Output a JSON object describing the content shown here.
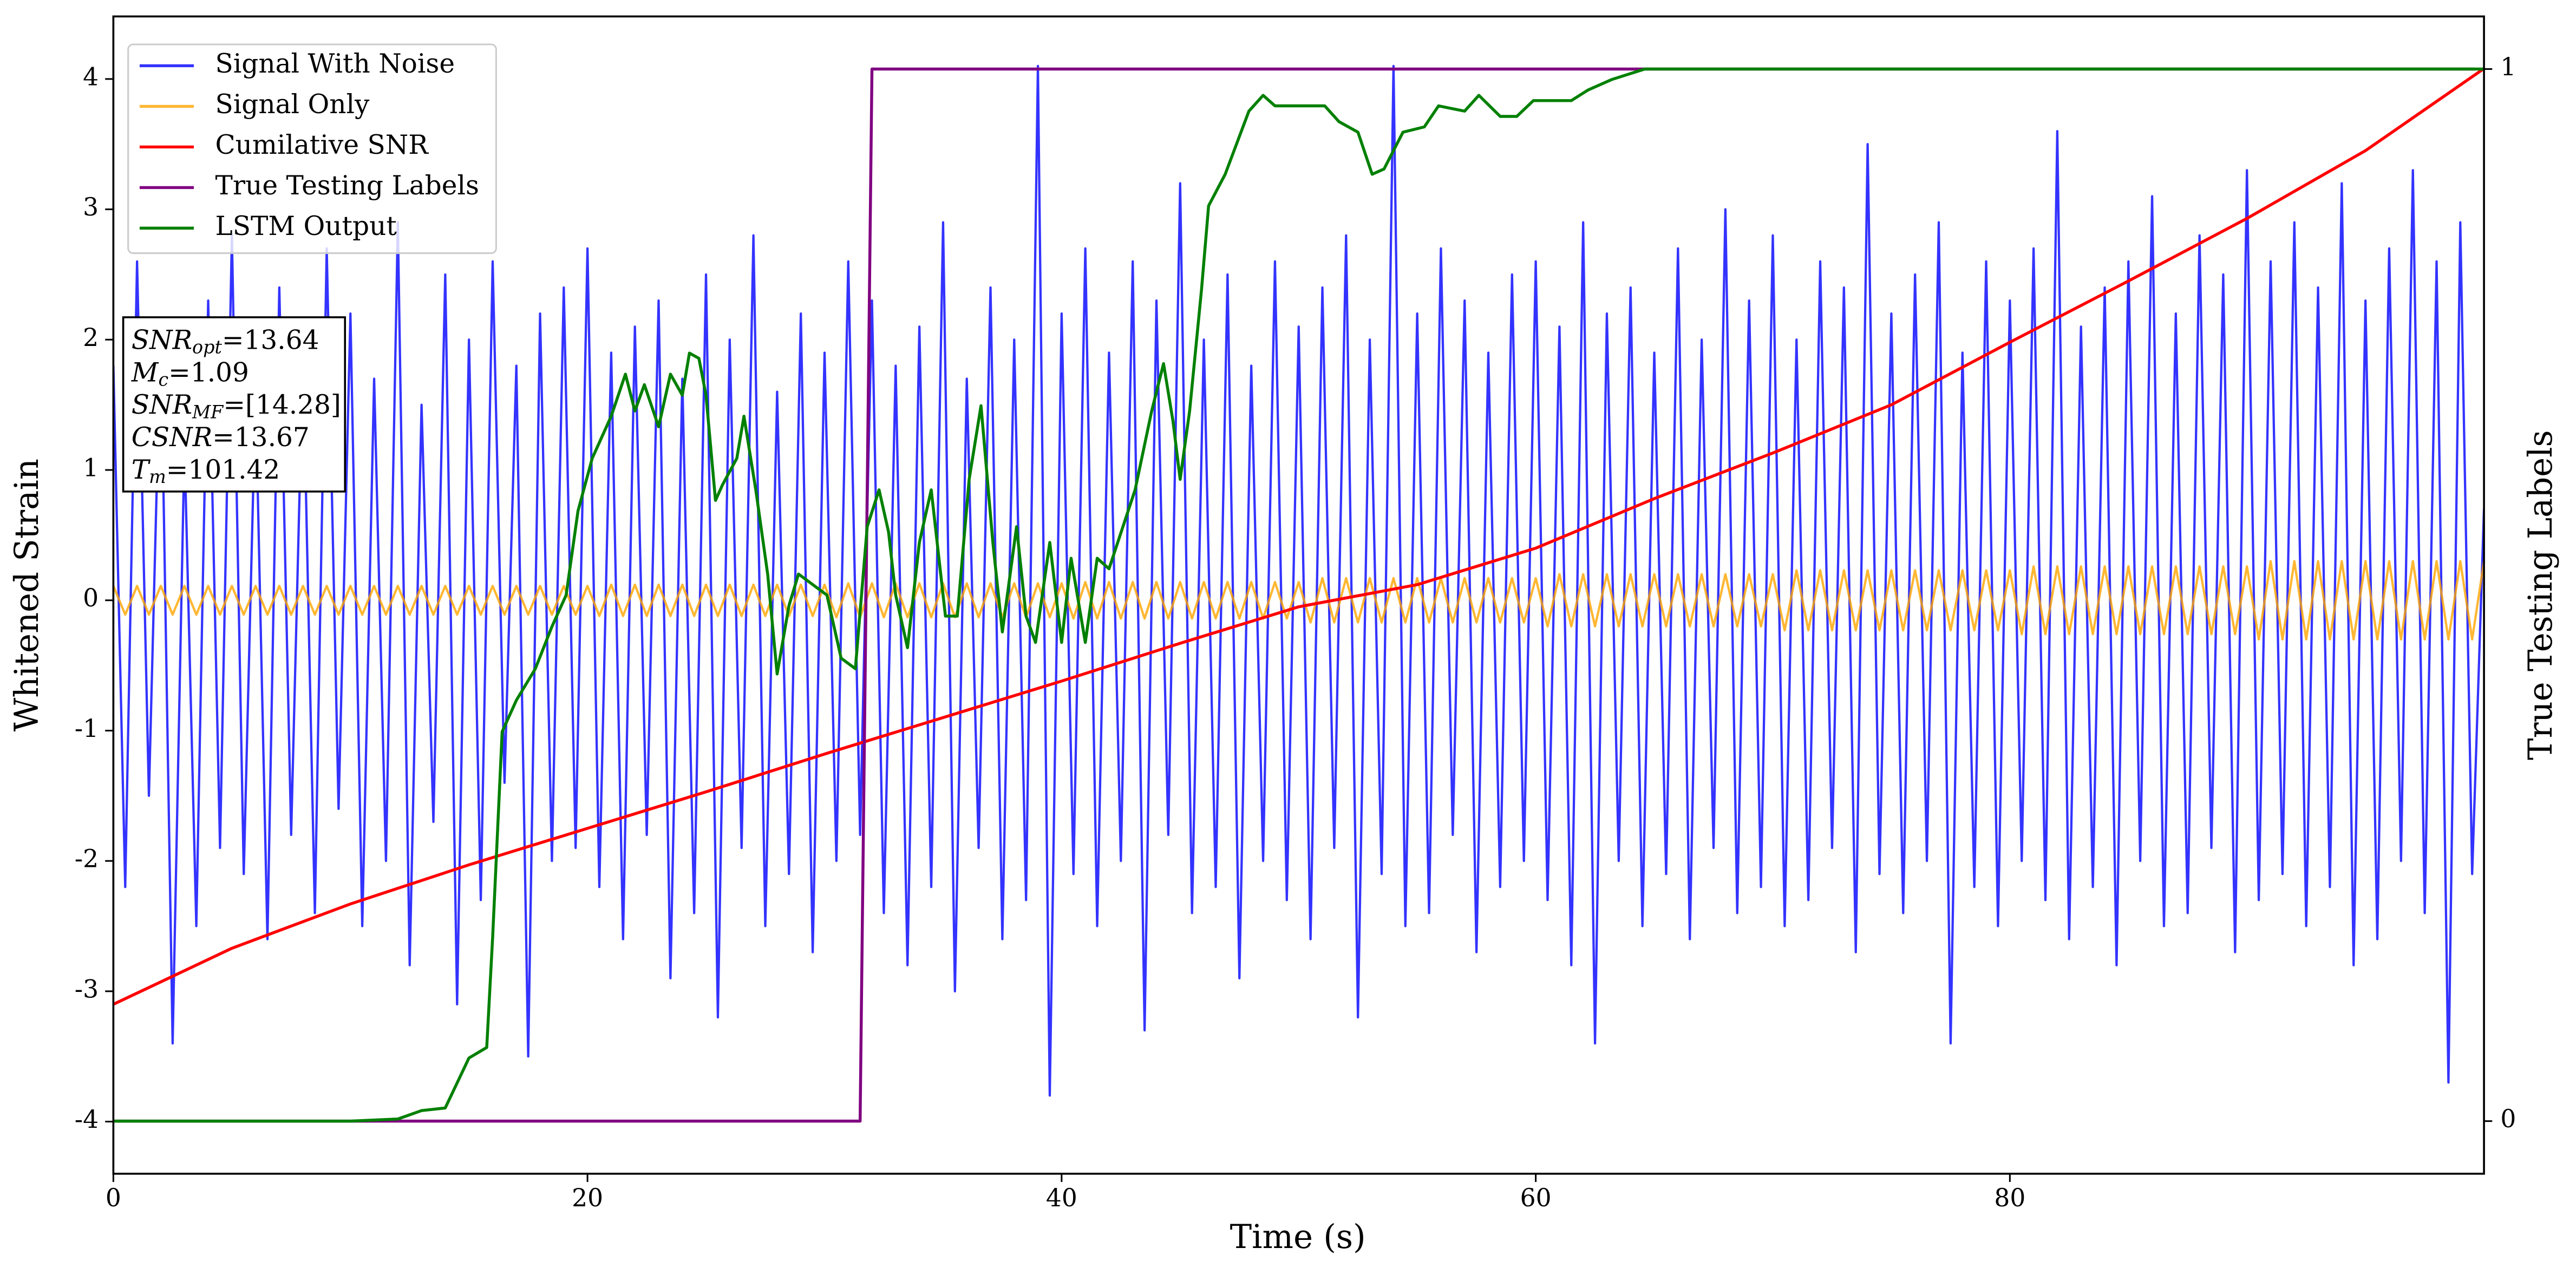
{
  "chart_data": {
    "type": "line",
    "xlabel": "Time (s)",
    "ylabel": "Whitened Strain",
    "y2label": "True Testing Labels",
    "xlim": [
      0,
      100
    ],
    "ylim": [
      -4.4,
      4.48
    ],
    "y2lim": [
      -0.05,
      1.05
    ],
    "xticks": [
      0,
      20,
      40,
      60,
      80
    ],
    "yticks": [
      -4,
      -3,
      -2,
      -1,
      0,
      1,
      2,
      3,
      4
    ],
    "y2ticks": [
      0,
      1
    ],
    "legend": "upper left",
    "annotation": [
      {
        "main": "SNR",
        "sub": "opt",
        "rest": "=13.64"
      },
      {
        "main": "M",
        "sub": "c",
        "rest": "=1.09"
      },
      {
        "main": "SNR",
        "sub": "MF",
        "rest": "=[14.28]"
      },
      {
        "main": "CSNR",
        "sub": null,
        "rest": "=13.67"
      },
      {
        "main": "T",
        "sub": "m",
        "rest": "=101.42"
      }
    ],
    "series": [
      {
        "name": "Signal With Noise",
        "color": "blue",
        "alpha": 0.8,
        "axis": "y",
        "x": [
          0,
          0.5,
          1,
          1.5,
          2,
          2.5,
          3,
          3.5,
          4,
          4.5,
          5,
          5.5,
          6,
          6.5,
          7,
          7.5,
          8,
          8.5,
          9,
          9.5,
          10,
          10.5,
          11,
          11.5,
          12,
          12.5,
          13,
          13.5,
          14,
          14.5,
          15,
          15.5,
          16,
          16.5,
          17,
          17.5,
          18,
          18.5,
          19,
          19.5,
          20,
          20.5,
          21,
          21.5,
          22,
          22.5,
          23,
          23.5,
          24,
          24.5,
          25,
          25.5,
          26,
          26.5,
          27,
          27.5,
          28,
          28.5,
          29,
          29.5,
          30,
          30.5,
          31,
          31.5,
          32,
          32.5,
          33,
          33.5,
          34,
          34.5,
          35,
          35.5,
          36,
          36.5,
          37,
          37.5,
          38,
          38.5,
          39,
          39.5,
          40,
          40.5,
          41,
          41.5,
          42,
          42.5,
          43,
          43.5,
          44,
          44.5,
          45,
          45.5,
          46,
          46.5,
          47,
          47.5,
          48,
          48.5,
          49,
          49.5,
          50,
          50.5,
          51,
          51.5,
          52,
          52.5,
          53,
          53.5,
          54,
          54.5,
          55,
          55.5,
          56,
          56.5,
          57,
          57.5,
          58,
          58.5,
          59,
          59.5,
          60,
          60.5,
          61,
          61.5,
          62,
          62.5,
          63,
          63.5,
          64,
          64.5,
          65,
          65.5,
          66,
          66.5,
          67,
          67.5,
          68,
          68.5,
          69,
          69.5,
          70,
          70.5,
          71,
          71.5,
          72,
          72.5,
          73,
          73.5,
          74,
          74.5,
          75,
          75.5,
          76,
          76.5,
          77,
          77.5,
          78,
          78.5,
          79,
          79.5,
          80,
          80.5,
          81,
          81.5,
          82,
          82.5,
          83,
          83.5,
          84,
          84.5,
          85,
          85.5,
          86,
          86.5,
          87,
          87.5,
          88,
          88.5,
          89,
          89.5,
          90,
          90.5,
          91,
          91.5,
          92,
          92.5,
          93,
          93.5,
          94,
          94.5,
          95,
          95.5,
          96,
          96.5,
          97,
          97.5,
          98,
          98.5,
          99,
          99.5,
          100
        ],
        "values": [
          1.8,
          -2.2,
          2.6,
          -1.5,
          2.1,
          -3.4,
          1.2,
          -2.5,
          2.3,
          -1.9,
          2.8,
          -2.1,
          1.6,
          -2.6,
          2.4,
          -1.8,
          1.9,
          -2.4,
          2.7,
          -1.6,
          2.2,
          -2.5,
          1.7,
          -2.0,
          2.9,
          -2.8,
          1.5,
          -1.7,
          2.5,
          -3.1,
          2.0,
          -2.3,
          2.6,
          -1.4,
          1.8,
          -3.5,
          2.2,
          -2.0,
          2.4,
          -1.9,
          2.7,
          -2.2,
          1.9,
          -2.6,
          2.1,
          -1.8,
          2.3,
          -2.9,
          1.7,
          -2.4,
          2.5,
          -3.2,
          2.0,
          -1.9,
          2.8,
          -2.5,
          1.6,
          -2.1,
          2.2,
          -2.7,
          1.9,
          -2.0,
          2.6,
          -1.8,
          2.3,
          -2.4,
          1.8,
          -2.8,
          2.1,
          -2.2,
          2.9,
          -3.0,
          1.7,
          -1.9,
          2.4,
          -2.6,
          2.0,
          -2.3,
          4.1,
          -3.8,
          2.2,
          -2.1,
          2.7,
          -2.5,
          1.9,
          -2.0,
          2.6,
          -3.3,
          2.3,
          -1.8,
          3.2,
          -2.4,
          2.0,
          -2.2,
          2.5,
          -2.9,
          1.8,
          -2.0,
          2.6,
          -2.3,
          2.1,
          -2.6,
          2.4,
          -1.9,
          2.8,
          -3.2,
          2.0,
          -2.1,
          4.1,
          -2.5,
          2.2,
          -2.4,
          2.7,
          -1.8,
          2.3,
          -2.7,
          1.9,
          -2.2,
          2.5,
          -2.0,
          2.6,
          -2.3,
          2.1,
          -2.8,
          2.9,
          -3.4,
          2.2,
          -2.0,
          2.4,
          -2.5,
          1.9,
          -2.1,
          2.7,
          -2.6,
          2.0,
          -1.9,
          3.0,
          -2.4,
          2.3,
          -2.2,
          2.8,
          -2.5,
          2.0,
          -2.3,
          2.6,
          -1.9,
          2.4,
          -2.7,
          3.5,
          -2.1,
          2.2,
          -2.4,
          2.5,
          -2.0,
          2.9,
          -3.4,
          1.9,
          -2.2,
          2.6,
          -2.5,
          2.3,
          -2.0,
          2.7,
          -2.3,
          3.6,
          -2.6,
          2.1,
          -2.2,
          2.4,
          -2.8,
          2.6,
          -2.0,
          3.1,
          -2.5,
          2.2,
          -2.4,
          2.8,
          -1.9,
          2.5,
          -2.7,
          3.3,
          -2.3,
          2.6,
          -2.1,
          2.9,
          -2.5,
          2.4,
          -2.2,
          3.2,
          -2.8,
          2.3,
          -2.6,
          2.7,
          -2.0,
          3.3,
          -2.4,
          2.6,
          -3.7,
          2.9,
          -2.1,
          0.7
        ]
      },
      {
        "name": "Signal Only",
        "color": "orange",
        "alpha": 0.8,
        "axis": "y",
        "x": [
          0,
          0.5,
          1,
          1.5,
          2,
          2.5,
          3,
          3.5,
          4,
          4.5,
          5,
          5.5,
          6,
          6.5,
          7,
          7.5,
          8,
          8.5,
          9,
          9.5,
          10,
          10.5,
          11,
          11.5,
          12,
          12.5,
          13,
          13.5,
          14,
          14.5,
          15,
          15.5,
          16,
          16.5,
          17,
          17.5,
          18,
          18.5,
          19,
          19.5,
          20,
          20.5,
          21,
          21.5,
          22,
          22.5,
          23,
          23.5,
          24,
          24.5,
          25,
          25.5,
          26,
          26.5,
          27,
          27.5,
          28,
          28.5,
          29,
          29.5,
          30,
          30.5,
          31,
          31.5,
          32,
          32.5,
          33,
          33.5,
          34,
          34.5,
          35,
          35.5,
          36,
          36.5,
          37,
          37.5,
          38,
          38.5,
          39,
          39.5,
          40,
          40.5,
          41,
          41.5,
          42,
          42.5,
          43,
          43.5,
          44,
          44.5,
          45,
          45.5,
          46,
          46.5,
          47,
          47.5,
          48,
          48.5,
          49,
          49.5,
          50,
          50.5,
          51,
          51.5,
          52,
          52.5,
          53,
          53.5,
          54,
          54.5,
          55,
          55.5,
          56,
          56.5,
          57,
          57.5,
          58,
          58.5,
          59,
          59.5,
          60,
          60.5,
          61,
          61.5,
          62,
          62.5,
          63,
          63.5,
          64,
          64.5,
          65,
          65.5,
          66,
          66.5,
          67,
          67.5,
          68,
          68.5,
          69,
          69.5,
          70,
          70.5,
          71,
          71.5,
          72,
          72.5,
          73,
          73.5,
          74,
          74.5,
          75,
          75.5,
          76,
          76.5,
          77,
          77.5,
          78,
          78.5,
          79,
          79.5,
          80,
          80.5,
          81,
          81.5,
          82,
          82.5,
          83,
          83.5,
          84,
          84.5,
          85,
          85.5,
          86,
          86.5,
          87,
          87.5,
          88,
          88.5,
          89,
          89.5,
          90,
          90.5,
          91,
          91.5,
          92,
          92.5,
          93,
          93.5,
          94,
          94.5,
          95,
          95.5,
          96,
          96.5,
          97,
          97.5,
          98,
          98.5,
          99,
          99.5,
          100
        ],
        "values": [
          0.11,
          -0.11,
          0.11,
          -0.11,
          0.11,
          -0.11,
          0.11,
          -0.11,
          0.11,
          -0.11,
          0.11,
          -0.11,
          0.11,
          -0.11,
          0.11,
          -0.11,
          0.11,
          -0.11,
          0.11,
          -0.11,
          0.11,
          -0.11,
          0.11,
          -0.11,
          0.11,
          -0.11,
          0.11,
          -0.11,
          0.11,
          -0.11,
          0.11,
          -0.11,
          0.11,
          -0.11,
          0.11,
          -0.11,
          0.11,
          -0.11,
          0.11,
          -0.11,
          0.11,
          -0.12,
          0.12,
          -0.12,
          0.12,
          -0.12,
          0.12,
          -0.12,
          0.12,
          -0.12,
          0.12,
          -0.12,
          0.12,
          -0.12,
          0.12,
          -0.12,
          0.12,
          -0.12,
          0.12,
          -0.12,
          0.12,
          -0.13,
          0.13,
          -0.13,
          0.13,
          -0.13,
          0.13,
          -0.13,
          0.13,
          -0.13,
          0.13,
          -0.13,
          0.13,
          -0.13,
          0.13,
          -0.13,
          0.13,
          -0.13,
          0.13,
          -0.13,
          0.13,
          -0.14,
          0.14,
          -0.14,
          0.14,
          -0.14,
          0.14,
          -0.14,
          0.14,
          -0.14,
          0.14,
          -0.14,
          0.14,
          -0.14,
          0.14,
          -0.14,
          0.14,
          -0.14,
          0.14,
          -0.14,
          0.14,
          -0.17,
          0.17,
          -0.17,
          0.17,
          -0.17,
          0.17,
          -0.17,
          0.17,
          -0.17,
          0.17,
          -0.17,
          0.17,
          -0.17,
          0.17,
          -0.17,
          0.17,
          -0.17,
          0.17,
          -0.17,
          0.17,
          -0.2,
          0.2,
          -0.2,
          0.2,
          -0.2,
          0.2,
          -0.2,
          0.2,
          -0.2,
          0.2,
          -0.2,
          0.2,
          -0.2,
          0.2,
          -0.2,
          0.2,
          -0.2,
          0.2,
          -0.2,
          0.2,
          -0.23,
          0.23,
          -0.23,
          0.23,
          -0.23,
          0.23,
          -0.23,
          0.23,
          -0.23,
          0.23,
          -0.23,
          0.23,
          -0.23,
          0.23,
          -0.23,
          0.23,
          -0.23,
          0.23,
          -0.23,
          0.23,
          -0.26,
          0.26,
          -0.26,
          0.26,
          -0.26,
          0.26,
          -0.26,
          0.26,
          -0.26,
          0.26,
          -0.26,
          0.26,
          -0.26,
          0.26,
          -0.26,
          0.26,
          -0.26,
          0.26,
          -0.26,
          0.26,
          -0.3,
          0.3,
          -0.3,
          0.3,
          -0.3,
          0.3,
          -0.3,
          0.3,
          -0.3,
          0.3,
          -0.3,
          0.3,
          -0.3,
          0.3,
          -0.3,
          0.3,
          -0.3,
          0.3,
          -0.3,
          0.3
        ]
      },
      {
        "name": "Cumilative SNR",
        "color": "red",
        "axis": "y",
        "x": [
          0,
          5,
          10,
          15,
          20,
          25,
          30,
          35,
          40,
          45,
          50,
          55,
          60,
          65,
          70,
          75,
          80,
          85,
          90,
          95,
          100
        ],
        "values": [
          -3.1,
          -2.67,
          -2.33,
          -2.03,
          -1.75,
          -1.47,
          -1.18,
          -0.9,
          -0.62,
          -0.33,
          -0.05,
          0.12,
          0.4,
          0.78,
          1.13,
          1.5,
          1.98,
          2.45,
          2.93,
          3.45,
          4.08
        ]
      },
      {
        "name": "True Testing Labels",
        "color": "purple",
        "axis": "y2",
        "x": [
          0,
          31.5,
          32,
          99.6
        ],
        "values": [
          0,
          0,
          1,
          1
        ]
      },
      {
        "name": "LSTM Output",
        "color": "green",
        "axis": "y2",
        "x": [
          0,
          10,
          12,
          13,
          14,
          15,
          15.75,
          16,
          16.4,
          17,
          17.8,
          18.5,
          19.1,
          19.6,
          20.2,
          21,
          21.6,
          22,
          22.4,
          23,
          23.5,
          24,
          24.3,
          24.7,
          25,
          25.4,
          25.7,
          26.3,
          26.6,
          27.1,
          27.6,
          28,
          28.5,
          28.9,
          29.5,
          30.1,
          30.7,
          31.3,
          31.8,
          32.3,
          32.7,
          33,
          33.5,
          34,
          34.5,
          35.1,
          35.6,
          36.1,
          36.6,
          37.1,
          37.5,
          38.1,
          38.5,
          38.9,
          39.5,
          40,
          40.4,
          41,
          41.5,
          42,
          43.1,
          43.8,
          44.3,
          44.7,
          45,
          45.4,
          45.9,
          46.2,
          46.9,
          47.4,
          47.9,
          48.5,
          49,
          50,
          51.1,
          51.7,
          52.5,
          53.1,
          53.6,
          54.4,
          55.3,
          55.9,
          57,
          57.6,
          58.5,
          59.2,
          59.9,
          61.5,
          62.2,
          63.2,
          64.6,
          100
        ],
        "values": [
          0,
          0,
          0.002,
          0.01,
          0.0125,
          0.06,
          0.07,
          0.175,
          0.37,
          0.4,
          0.43,
          0.47,
          0.5,
          0.58,
          0.63,
          0.67,
          0.71,
          0.675,
          0.7,
          0.66,
          0.71,
          0.69,
          0.73,
          0.725,
          0.69,
          0.59,
          0.605,
          0.63,
          0.67,
          0.6,
          0.52,
          0.425,
          0.49,
          0.52,
          0.51,
          0.5,
          0.44,
          0.43,
          0.565,
          0.6,
          0.56,
          0.5,
          0.45,
          0.55,
          0.6,
          0.48,
          0.48,
          0.61,
          0.68,
          0.55,
          0.465,
          0.565,
          0.48,
          0.455,
          0.55,
          0.455,
          0.535,
          0.455,
          0.535,
          0.525,
          0.6,
          0.675,
          0.72,
          0.665,
          0.61,
          0.675,
          0.79,
          0.87,
          0.9,
          0.93,
          0.96,
          0.975,
          0.965,
          0.965,
          0.965,
          0.95,
          0.94,
          0.9,
          0.905,
          0.94,
          0.945,
          0.965,
          0.96,
          0.975,
          0.955,
          0.955,
          0.97,
          0.97,
          0.98,
          0.99,
          1.0,
          1.0
        ]
      }
    ]
  }
}
